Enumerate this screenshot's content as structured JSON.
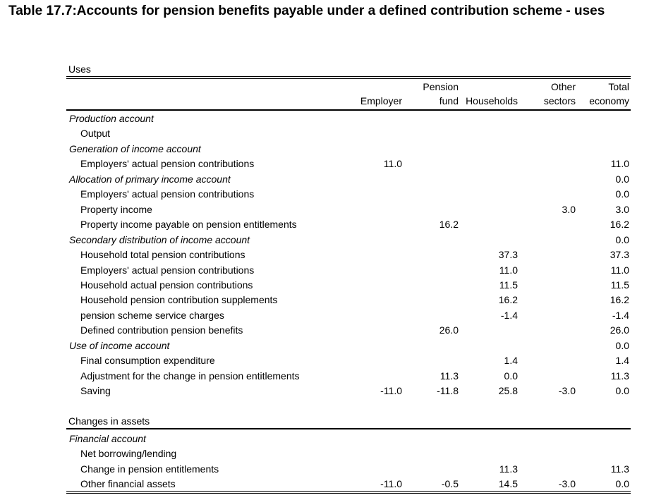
{
  "title": "Table 17.7:Accounts for pension benefits payable under a defined contribution scheme - uses",
  "uses_label": "Uses",
  "changes_label": "Changes in assets",
  "columns": {
    "employer": "Employer",
    "pension_line1": "Pension",
    "pension_line2": "fund",
    "households": "Households",
    "other_line1": "Other",
    "other_line2": "sectors",
    "total_line1": "Total",
    "total_line2": "economy"
  },
  "rows": [
    {
      "label": "Production account",
      "head": true,
      "v": [
        "",
        "",
        "",
        "",
        ""
      ]
    },
    {
      "label": "Output",
      "head": false,
      "v": [
        "",
        "",
        "",
        "",
        ""
      ]
    },
    {
      "label": "Generation of income account",
      "head": true,
      "v": [
        "",
        "",
        "",
        "",
        ""
      ]
    },
    {
      "label": "Employers' actual pension contributions",
      "head": false,
      "v": [
        "11.0",
        "",
        "",
        "",
        "11.0"
      ]
    },
    {
      "label": "Allocation of primary income account",
      "head": true,
      "v": [
        "",
        "",
        "",
        "",
        "0.0"
      ]
    },
    {
      "label": "Employers' actual pension contributions",
      "head": false,
      "v": [
        "",
        "",
        "",
        "",
        "0.0"
      ]
    },
    {
      "label": "Property income",
      "head": false,
      "v": [
        "",
        "",
        "",
        "3.0",
        "3.0"
      ]
    },
    {
      "label": "Property income payable on pension entitlements",
      "head": false,
      "v": [
        "",
        "16.2",
        "",
        "",
        "16.2"
      ]
    },
    {
      "label": "Secondary distribution of income account",
      "head": true,
      "v": [
        "",
        "",
        "",
        "",
        "0.0"
      ]
    },
    {
      "label": "Household total pension contributions",
      "head": false,
      "v": [
        "",
        "",
        "37.3",
        "",
        "37.3"
      ]
    },
    {
      "label": "Employers' actual pension contributions",
      "head": false,
      "v": [
        "",
        "",
        "11.0",
        "",
        "11.0"
      ]
    },
    {
      "label": "Household actual pension contributions",
      "head": false,
      "v": [
        "",
        "",
        "11.5",
        "",
        "11.5"
      ]
    },
    {
      "label": "Household pension contribution supplements",
      "head": false,
      "v": [
        "",
        "",
        "16.2",
        "",
        "16.2"
      ]
    },
    {
      "label": "pension scheme service charges",
      "head": false,
      "v": [
        "",
        "",
        "-1.4",
        "",
        "-1.4"
      ]
    },
    {
      "label": "Defined contribution pension benefits",
      "head": false,
      "v": [
        "",
        "26.0",
        "",
        "",
        "26.0"
      ]
    },
    {
      "label": "Use of income account",
      "head": true,
      "v": [
        "",
        "",
        "",
        "",
        "0.0"
      ]
    },
    {
      "label": "Final consumption expenditure",
      "head": false,
      "v": [
        "",
        "",
        "1.4",
        "",
        "1.4"
      ]
    },
    {
      "label": "Adjustment for the change in pension entitlements",
      "head": false,
      "v": [
        "",
        "11.3",
        "0.0",
        "",
        "11.3"
      ]
    },
    {
      "label": "Saving",
      "head": false,
      "v": [
        "-11.0",
        "-11.8",
        "25.8",
        "-3.0",
        "0.0"
      ]
    }
  ],
  "rows2": [
    {
      "label": "Financial account",
      "head": true,
      "v": [
        "",
        "",
        "",
        "",
        ""
      ]
    },
    {
      "label": "Net borrowing/lending",
      "head": false,
      "v": [
        "",
        "",
        "",
        "",
        ""
      ]
    },
    {
      "label": "Change in pension entitlements",
      "head": false,
      "v": [
        "",
        "",
        "11.3",
        "",
        "11.3"
      ]
    },
    {
      "label": "Other financial assets",
      "head": false,
      "v": [
        "-11.0",
        "-0.5",
        "14.5",
        "-3.0",
        "0.0"
      ]
    }
  ]
}
